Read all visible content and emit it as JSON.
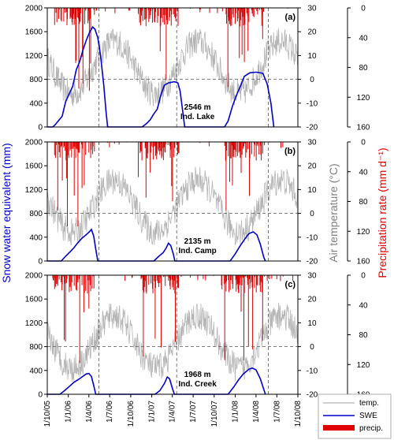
{
  "chart_data": {
    "type": "line",
    "date_range": [
      "2005-10-01",
      "2008-10-01"
    ],
    "colors": {
      "swe": "#0000cc",
      "temp": "#b4b4b4",
      "precip": "#e00000"
    },
    "axes": {
      "left_label": "Snow water equivalent (mm)",
      "left_ylim": [
        0,
        2000
      ],
      "left_ticks": [
        "0",
        "400",
        "800",
        "1200",
        "1600",
        "2000"
      ],
      "right1_label": "Air temperature (°C)",
      "right1_ylim": [
        -20,
        30
      ],
      "right1_ticks": [
        "-20",
        "-10",
        "0",
        "10",
        "20",
        "30"
      ],
      "right2_label": "Precipitation rate (mm d⁻¹)",
      "right2_ylim_inverted": [
        0,
        160
      ],
      "right2_ticks": [
        "0",
        "40",
        "80",
        "120",
        "160"
      ],
      "x_ticks": [
        "1/10/05",
        "1/1/06",
        "1/4/06",
        "1/7/06",
        "1/10/06",
        "1/1/07",
        "1/4/07",
        "1/7/07",
        "1/10/07",
        "1/1/08",
        "1/4/08",
        "1/7/08",
        "1/10/08"
      ],
      "x_tick_dates": [
        "2005-10-01",
        "2006-01-01",
        "2006-04-01",
        "2006-07-01",
        "2006-10-01",
        "2007-01-01",
        "2007-04-01",
        "2007-07-01",
        "2007-10-01",
        "2008-01-01",
        "2008-04-01",
        "2008-07-01",
        "2008-10-01"
      ]
    },
    "dashed_melt_dates": [
      "2006-05-15",
      "2007-04-20",
      "2008-05-25"
    ],
    "dashed_swe_level": 800,
    "panels": [
      {
        "label": "(a)",
        "site_elevation": "2546 m",
        "site_name": "Ind. Lake",
        "swe": [
          [
            "2005-10-01",
            0
          ],
          [
            "2005-10-25",
            0
          ],
          [
            "2005-11-05",
            40
          ],
          [
            "2005-11-20",
            110
          ],
          [
            "2005-12-05",
            180
          ],
          [
            "2005-12-20",
            420
          ],
          [
            "2006-01-05",
            560
          ],
          [
            "2006-01-20",
            680
          ],
          [
            "2006-02-05",
            960
          ],
          [
            "2006-02-20",
            1100
          ],
          [
            "2006-03-05",
            1280
          ],
          [
            "2006-03-20",
            1450
          ],
          [
            "2006-04-05",
            1600
          ],
          [
            "2006-04-18",
            1680
          ],
          [
            "2006-04-28",
            1640
          ],
          [
            "2006-05-10",
            1500
          ],
          [
            "2006-05-22",
            1200
          ],
          [
            "2006-06-05",
            700
          ],
          [
            "2006-06-15",
            250
          ],
          [
            "2006-06-22",
            0
          ],
          [
            "2006-11-20",
            0
          ],
          [
            "2006-12-10",
            60
          ],
          [
            "2006-12-25",
            120
          ],
          [
            "2007-01-10",
            220
          ],
          [
            "2007-01-25",
            300
          ],
          [
            "2007-02-10",
            540
          ],
          [
            "2007-02-25",
            700
          ],
          [
            "2007-03-15",
            740
          ],
          [
            "2007-04-10",
            760
          ],
          [
            "2007-04-25",
            740
          ],
          [
            "2007-05-05",
            600
          ],
          [
            "2007-05-15",
            300
          ],
          [
            "2007-05-25",
            0
          ],
          [
            "2007-11-15",
            0
          ],
          [
            "2007-12-01",
            100
          ],
          [
            "2007-12-20",
            350
          ],
          [
            "2008-01-05",
            520
          ],
          [
            "2008-01-25",
            700
          ],
          [
            "2008-02-10",
            850
          ],
          [
            "2008-03-05",
            910
          ],
          [
            "2008-04-01",
            920
          ],
          [
            "2008-05-01",
            900
          ],
          [
            "2008-05-20",
            720
          ],
          [
            "2008-06-05",
            400
          ],
          [
            "2008-06-18",
            0
          ]
        ]
      },
      {
        "label": "(b)",
        "site_elevation": "2135 m",
        "site_name": "Ind. Camp",
        "swe": [
          [
            "2005-10-01",
            0
          ],
          [
            "2005-12-01",
            0
          ],
          [
            "2005-12-20",
            80
          ],
          [
            "2006-01-10",
            160
          ],
          [
            "2006-01-25",
            220
          ],
          [
            "2006-02-10",
            300
          ],
          [
            "2006-03-01",
            380
          ],
          [
            "2006-03-20",
            440
          ],
          [
            "2006-04-05",
            500
          ],
          [
            "2006-04-12",
            530
          ],
          [
            "2006-04-22",
            420
          ],
          [
            "2006-05-01",
            200
          ],
          [
            "2006-05-10",
            0
          ],
          [
            "2007-01-10",
            0
          ],
          [
            "2007-02-01",
            80
          ],
          [
            "2007-02-20",
            140
          ],
          [
            "2007-03-05",
            220
          ],
          [
            "2007-03-15",
            300
          ],
          [
            "2007-03-25",
            260
          ],
          [
            "2007-04-05",
            120
          ],
          [
            "2007-04-12",
            0
          ],
          [
            "2007-12-10",
            0
          ],
          [
            "2008-01-01",
            120
          ],
          [
            "2008-01-20",
            240
          ],
          [
            "2008-02-10",
            360
          ],
          [
            "2008-03-01",
            460
          ],
          [
            "2008-03-20",
            490
          ],
          [
            "2008-04-05",
            440
          ],
          [
            "2008-04-20",
            280
          ],
          [
            "2008-05-05",
            60
          ],
          [
            "2008-05-12",
            0
          ]
        ]
      },
      {
        "label": "(c)",
        "site_elevation": "1968 m",
        "site_name": "Ind. Creek",
        "swe": [
          [
            "2005-10-01",
            0
          ],
          [
            "2005-11-25",
            0
          ],
          [
            "2005-12-15",
            60
          ],
          [
            "2006-01-05",
            130
          ],
          [
            "2006-01-25",
            200
          ],
          [
            "2006-02-15",
            250
          ],
          [
            "2006-03-05",
            300
          ],
          [
            "2006-03-20",
            340
          ],
          [
            "2006-04-01",
            350
          ],
          [
            "2006-04-12",
            300
          ],
          [
            "2006-04-22",
            150
          ],
          [
            "2006-05-01",
            0
          ],
          [
            "2007-01-15",
            0
          ],
          [
            "2007-02-05",
            60
          ],
          [
            "2007-02-25",
            180
          ],
          [
            "2007-03-10",
            290
          ],
          [
            "2007-03-20",
            260
          ],
          [
            "2007-04-01",
            100
          ],
          [
            "2007-04-10",
            0
          ],
          [
            "2007-12-01",
            0
          ],
          [
            "2007-12-25",
            120
          ],
          [
            "2008-01-15",
            240
          ],
          [
            "2008-02-05",
            340
          ],
          [
            "2008-03-01",
            420
          ],
          [
            "2008-03-15",
            440
          ],
          [
            "2008-04-01",
            410
          ],
          [
            "2008-04-20",
            260
          ],
          [
            "2008-05-05",
            80
          ],
          [
            "2008-05-12",
            0
          ]
        ]
      }
    ],
    "legend": [
      "temp.",
      "SWE",
      "precip."
    ]
  }
}
